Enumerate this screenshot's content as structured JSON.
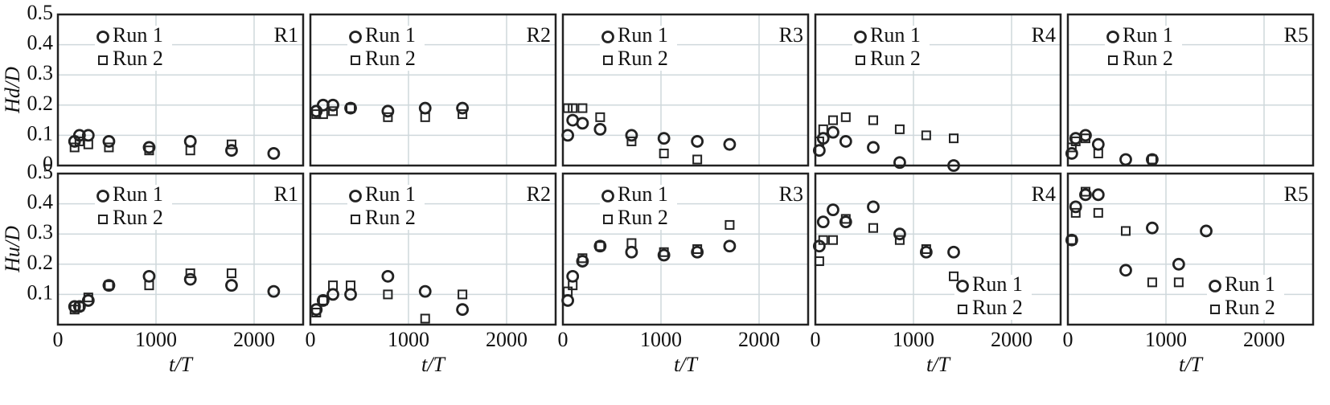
{
  "chart_data": [
    {
      "type": "scatter",
      "annotation": "R1",
      "ylabel": "Hd/D",
      "xlim": [
        0,
        2500
      ],
      "ylim": [
        0,
        0.5
      ],
      "xticks": [
        0,
        1000,
        2000
      ],
      "yticks": [
        0,
        0.1,
        0.2,
        0.3,
        0.4,
        0.5
      ],
      "grid": true,
      "legend": "upper left",
      "series": [
        {
          "name": "Run 1",
          "marker": "circle",
          "color": "#222222",
          "x": [
            170,
            220,
            310,
            520,
            930,
            1350,
            1770,
            2200
          ],
          "values": [
            0.08,
            0.1,
            0.1,
            0.08,
            0.06,
            0.08,
            0.05,
            0.04
          ]
        },
        {
          "name": "Run 2",
          "marker": "square",
          "color": "#222222",
          "x": [
            170,
            220,
            310,
            520,
            930,
            1350,
            1770
          ],
          "values": [
            0.06,
            0.08,
            0.07,
            0.06,
            0.05,
            0.05,
            0.07
          ]
        }
      ]
    },
    {
      "type": "scatter",
      "annotation": "R2",
      "xlim": [
        0,
        2500
      ],
      "ylim": [
        0,
        0.5
      ],
      "xticks": [
        0,
        1000,
        2000
      ],
      "yticks": [
        0,
        0.1,
        0.2,
        0.3,
        0.4,
        0.5
      ],
      "grid": true,
      "legend": "upper left",
      "series": [
        {
          "name": "Run 1",
          "marker": "circle",
          "color": "#222222",
          "x": [
            60,
            130,
            230,
            410,
            790,
            1170,
            1550
          ],
          "values": [
            0.18,
            0.2,
            0.2,
            0.19,
            0.18,
            0.19,
            0.19
          ]
        },
        {
          "name": "Run 2",
          "marker": "square",
          "color": "#222222",
          "x": [
            60,
            130,
            230,
            410,
            790,
            1170,
            1550
          ],
          "values": [
            0.17,
            0.17,
            0.18,
            0.19,
            0.16,
            0.16,
            0.17
          ]
        }
      ]
    },
    {
      "type": "scatter",
      "annotation": "R3",
      "xlim": [
        0,
        2500
      ],
      "ylim": [
        0,
        0.5
      ],
      "xticks": [
        0,
        1000,
        2000
      ],
      "yticks": [
        0,
        0.1,
        0.2,
        0.3,
        0.4,
        0.5
      ],
      "grid": true,
      "legend": "upper left",
      "series": [
        {
          "name": "Run 1",
          "marker": "circle",
          "color": "#222222",
          "x": [
            50,
            100,
            200,
            380,
            700,
            1030,
            1370,
            1700
          ],
          "values": [
            0.1,
            0.15,
            0.14,
            0.12,
            0.1,
            0.09,
            0.08,
            0.07
          ]
        },
        {
          "name": "Run 2",
          "marker": "square",
          "color": "#222222",
          "x": [
            50,
            100,
            200,
            380,
            700,
            1030,
            1370
          ],
          "values": [
            0.19,
            0.19,
            0.19,
            0.16,
            0.08,
            0.04,
            0.02
          ]
        }
      ]
    },
    {
      "type": "scatter",
      "annotation": "R4",
      "xlim": [
        0,
        2500
      ],
      "ylim": [
        0,
        0.5
      ],
      "xticks": [
        0,
        1000,
        2000
      ],
      "yticks": [
        0,
        0.1,
        0.2,
        0.3,
        0.4,
        0.5
      ],
      "grid": true,
      "legend": "upper left",
      "series": [
        {
          "name": "Run 1",
          "marker": "circle",
          "color": "#222222",
          "x": [
            40,
            80,
            180,
            310,
            590,
            860,
            1410
          ],
          "values": [
            0.05,
            0.09,
            0.11,
            0.08,
            0.06,
            0.01,
            0
          ]
        },
        {
          "name": "Run 2",
          "marker": "square",
          "color": "#222222",
          "x": [
            40,
            80,
            180,
            310,
            590,
            860,
            1130,
            1410
          ],
          "values": [
            0.08,
            0.12,
            0.15,
            0.16,
            0.15,
            0.12,
            0.1,
            0.09
          ]
        }
      ]
    },
    {
      "type": "scatter",
      "annotation": "R5",
      "xlim": [
        0,
        2500
      ],
      "ylim": [
        0,
        0.5
      ],
      "xticks": [
        0,
        1000,
        2000
      ],
      "yticks": [
        0,
        0.1,
        0.2,
        0.3,
        0.4,
        0.5
      ],
      "grid": true,
      "legend": "upper left",
      "series": [
        {
          "name": "Run 1",
          "marker": "circle",
          "color": "#222222",
          "x": [
            40,
            80,
            180,
            310,
            590,
            860
          ],
          "values": [
            0.04,
            0.09,
            0.1,
            0.07,
            0.02,
            0.02
          ]
        },
        {
          "name": "Run 2",
          "marker": "square",
          "color": "#222222",
          "x": [
            40,
            80,
            180,
            310,
            860
          ],
          "values": [
            0.06,
            0.08,
            0.09,
            0.04,
            0.02
          ]
        }
      ]
    },
    {
      "type": "scatter",
      "annotation": "R1",
      "ylabel": "Hu/D",
      "xlabel": "t/T",
      "xlim": [
        0,
        2500
      ],
      "ylim": [
        0,
        0.5
      ],
      "xticks": [
        0,
        1000,
        2000
      ],
      "yticks": [
        0.1,
        0.2,
        0.3,
        0.4,
        0.5
      ],
      "grid": true,
      "legend": "upper left",
      "series": [
        {
          "name": "Run 1",
          "marker": "circle",
          "color": "#222222",
          "x": [
            170,
            220,
            310,
            520,
            930,
            1350,
            1770,
            2200
          ],
          "values": [
            0.06,
            0.06,
            0.08,
            0.13,
            0.16,
            0.15,
            0.13,
            0.11
          ]
        },
        {
          "name": "Run 2",
          "marker": "square",
          "color": "#222222",
          "x": [
            170,
            220,
            310,
            520,
            930,
            1350,
            1770
          ],
          "values": [
            0.05,
            0.06,
            0.09,
            0.13,
            0.13,
            0.17,
            0.17
          ]
        }
      ]
    },
    {
      "type": "scatter",
      "annotation": "R2",
      "xlabel": "t/T",
      "xlim": [
        0,
        2500
      ],
      "ylim": [
        0,
        0.5
      ],
      "xticks": [
        0,
        1000,
        2000
      ],
      "yticks": [
        0.1,
        0.2,
        0.3,
        0.4,
        0.5
      ],
      "grid": true,
      "legend": "upper left",
      "series": [
        {
          "name": "Run 1",
          "marker": "circle",
          "color": "#222222",
          "x": [
            60,
            130,
            230,
            410,
            790,
            1170,
            1550
          ],
          "values": [
            0.05,
            0.08,
            0.1,
            0.1,
            0.16,
            0.11,
            0.05
          ]
        },
        {
          "name": "Run 2",
          "marker": "square",
          "color": "#222222",
          "x": [
            60,
            130,
            230,
            410,
            790,
            1170,
            1550
          ],
          "values": [
            0.04,
            0.08,
            0.13,
            0.13,
            0.1,
            0.02,
            0.1
          ]
        }
      ]
    },
    {
      "type": "scatter",
      "annotation": "R3",
      "xlabel": "t/T",
      "xlim": [
        0,
        2500
      ],
      "ylim": [
        0,
        0.5
      ],
      "xticks": [
        0,
        1000,
        2000
      ],
      "yticks": [
        0.1,
        0.2,
        0.3,
        0.4,
        0.5
      ],
      "grid": true,
      "legend": "upper left",
      "series": [
        {
          "name": "Run 1",
          "marker": "circle",
          "color": "#222222",
          "x": [
            50,
            100,
            200,
            380,
            700,
            1030,
            1370,
            1700
          ],
          "values": [
            0.08,
            0.16,
            0.21,
            0.26,
            0.24,
            0.23,
            0.24,
            0.26
          ]
        },
        {
          "name": "Run 2",
          "marker": "square",
          "color": "#222222",
          "x": [
            50,
            100,
            200,
            380,
            700,
            1030,
            1370,
            1700
          ],
          "values": [
            0.11,
            0.13,
            0.22,
            0.26,
            0.27,
            0.24,
            0.25,
            0.33
          ]
        }
      ]
    },
    {
      "type": "scatter",
      "annotation": "R4",
      "xlabel": "t/T",
      "xlim": [
        0,
        2500
      ],
      "ylim": [
        0,
        0.5
      ],
      "xticks": [
        0,
        1000,
        2000
      ],
      "yticks": [
        0.1,
        0.2,
        0.3,
        0.4,
        0.5
      ],
      "grid": true,
      "legend": "lower right",
      "series": [
        {
          "name": "Run 1",
          "marker": "circle",
          "color": "#222222",
          "x": [
            40,
            80,
            180,
            310,
            590,
            860,
            1130,
            1410
          ],
          "values": [
            0.26,
            0.34,
            0.38,
            0.34,
            0.39,
            0.3,
            0.24,
            0.24
          ]
        },
        {
          "name": "Run 2",
          "marker": "square",
          "color": "#222222",
          "x": [
            40,
            80,
            180,
            310,
            590,
            860,
            1130,
            1410
          ],
          "values": [
            0.21,
            0.28,
            0.28,
            0.35,
            0.32,
            0.28,
            0.25,
            0.16
          ]
        }
      ]
    },
    {
      "type": "scatter",
      "annotation": "R5",
      "xlabel": "t/T",
      "xlim": [
        0,
        2500
      ],
      "ylim": [
        0,
        0.5
      ],
      "xticks": [
        0,
        1000,
        2000
      ],
      "yticks": [
        0.1,
        0.2,
        0.3,
        0.4,
        0.5
      ],
      "grid": true,
      "legend": "lower right",
      "series": [
        {
          "name": "Run 1",
          "marker": "circle",
          "color": "#222222",
          "x": [
            40,
            80,
            180,
            310,
            590,
            860,
            1130,
            1410
          ],
          "values": [
            0.28,
            0.39,
            0.43,
            0.43,
            0.18,
            0.32,
            0.2,
            0.31
          ]
        },
        {
          "name": "Run 2",
          "marker": "square",
          "color": "#222222",
          "x": [
            40,
            80,
            180,
            310,
            590,
            860,
            1130
          ],
          "values": [
            0.28,
            0.37,
            0.44,
            0.37,
            0.31,
            0.14,
            0.14
          ]
        }
      ]
    }
  ]
}
